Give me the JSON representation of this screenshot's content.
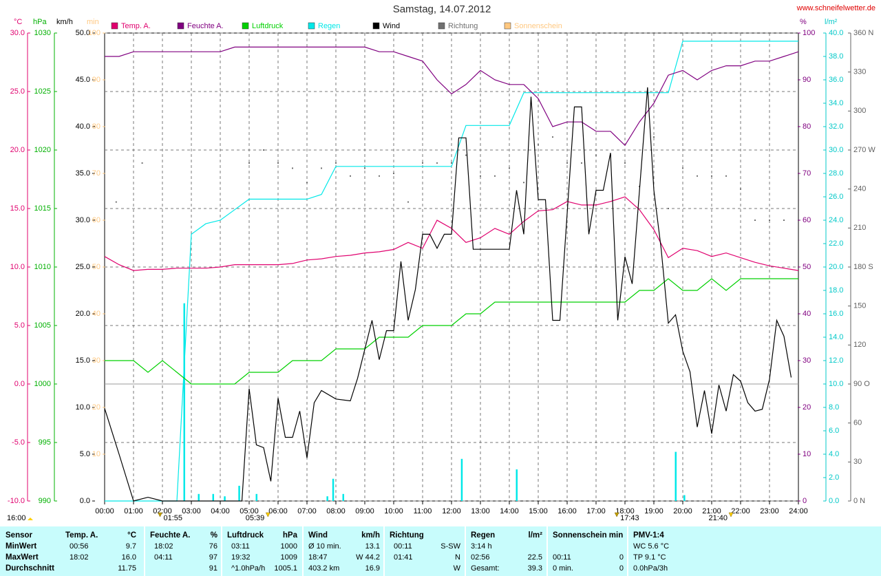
{
  "chart_data": {
    "type": "line",
    "title": "Samstag, 14.07.2012",
    "source": "www.schneifelwetter.de",
    "xlim": [
      0,
      24
    ],
    "xticks": [
      {
        "value": 0,
        "label": "00:00"
      },
      {
        "value": 1,
        "label": "01:00"
      },
      {
        "value": 2,
        "label": "02:00"
      },
      {
        "value": 3,
        "label": "03:00"
      },
      {
        "value": 4,
        "label": "04:00"
      },
      {
        "value": 5,
        "label": "05:00"
      },
      {
        "value": 6,
        "label": "06:00"
      },
      {
        "value": 7,
        "label": "07:00"
      },
      {
        "value": 8,
        "label": "08:00"
      },
      {
        "value": 9,
        "label": "09:00"
      },
      {
        "value": 10,
        "label": "10:00"
      },
      {
        "value": 11,
        "label": "11:00"
      },
      {
        "value": 12,
        "label": "12:00"
      },
      {
        "value": 13,
        "label": "13:00"
      },
      {
        "value": 14,
        "label": "14:00"
      },
      {
        "value": 15,
        "label": "15:00"
      },
      {
        "value": 16,
        "label": "16:00"
      },
      {
        "value": 17,
        "label": "17:00"
      },
      {
        "value": 18,
        "label": "18:00"
      },
      {
        "value": 19,
        "label": "19:00"
      },
      {
        "value": 20,
        "label": "20:00"
      },
      {
        "value": 21,
        "label": "21:00"
      },
      {
        "value": 22,
        "label": "22:00"
      },
      {
        "value": 23,
        "label": "23:00"
      },
      {
        "value": 24,
        "label": "24:00"
      }
    ],
    "grid": true,
    "grid_axis": 0,
    "axes": [
      {
        "unit": "°C",
        "color": "#e0006e",
        "lim": [
          -10,
          30
        ],
        "ticks": [
          {
            "value": -10,
            "label": "-10.0"
          },
          {
            "value": -5,
            "label": "-5.0"
          },
          {
            "value": 0,
            "label": "0.0"
          },
          {
            "value": 5,
            "label": "5.0"
          },
          {
            "value": 10,
            "label": "10.0"
          },
          {
            "value": 15,
            "label": "15.0"
          },
          {
            "value": 20,
            "label": "20.0"
          },
          {
            "value": 25,
            "label": "25.0"
          },
          {
            "value": 30,
            "label": "30.0"
          }
        ]
      },
      {
        "unit": "hPa",
        "color": "#00b000",
        "lim": [
          990,
          1030
        ],
        "ticks": [
          990,
          995,
          1000,
          1005,
          1010,
          1015,
          1020,
          1025,
          1030
        ]
      },
      {
        "unit": "km/h",
        "color": "#000000",
        "lim": [
          0,
          50
        ],
        "ticks": [
          {
            "value": 0,
            "label": "0.0"
          },
          {
            "value": 5,
            "label": "5.0"
          },
          {
            "value": 10,
            "label": "10.0"
          },
          {
            "value": 15,
            "label": "15.0"
          },
          {
            "value": 20,
            "label": "20.0"
          },
          {
            "value": 25,
            "label": "25.0"
          },
          {
            "value": 30,
            "label": "30.0"
          },
          {
            "value": 35,
            "label": "35.0"
          },
          {
            "value": 40,
            "label": "40.0"
          },
          {
            "value": 45,
            "label": "45.0"
          },
          {
            "value": 50,
            "label": "50.0"
          }
        ]
      },
      {
        "unit": "min",
        "color": "#ffc880",
        "lim": [
          0,
          100
        ],
        "ticks": [
          10,
          20,
          30,
          40,
          50,
          60,
          70,
          80,
          90,
          100
        ]
      },
      {
        "unit": "%",
        "color": "#800080",
        "lim": [
          0,
          100
        ],
        "ticks": [
          0,
          10,
          20,
          30,
          40,
          50,
          60,
          70,
          80,
          90,
          100
        ]
      },
      {
        "unit": "l/m²",
        "color": "#00c8c8",
        "lim": [
          0,
          40
        ],
        "ticks": [
          {
            "value": 0,
            "label": "0.0"
          },
          {
            "value": 2,
            "label": "2.0"
          },
          {
            "value": 4,
            "label": "4.0"
          },
          {
            "value": 6,
            "label": "6.0"
          },
          {
            "value": 8,
            "label": "8.0"
          },
          {
            "value": 10,
            "label": "10.0"
          },
          {
            "value": 12,
            "label": "12.0"
          },
          {
            "value": 14,
            "label": "14.0"
          },
          {
            "value": 16,
            "label": "16.0"
          },
          {
            "value": 18,
            "label": "18.0"
          },
          {
            "value": 20,
            "label": "20.0"
          },
          {
            "value": 22,
            "label": "22.0"
          },
          {
            "value": 24,
            "label": "24.0"
          },
          {
            "value": 26,
            "label": "26.0"
          },
          {
            "value": 28,
            "label": "28.0"
          },
          {
            "value": 30,
            "label": "30.0"
          },
          {
            "value": 32,
            "label": "32.0"
          },
          {
            "value": 34,
            "label": "34.0"
          },
          {
            "value": 36,
            "label": "36.0"
          },
          {
            "value": 38,
            "label": "38.0"
          },
          {
            "value": 40,
            "label": "40.0"
          }
        ]
      },
      {
        "color": "#606060",
        "lim": [
          0,
          360
        ],
        "ticks": [
          {
            "value": 0,
            "label": "0 N"
          },
          30,
          60,
          {
            "value": 90,
            "label": "90 O"
          },
          120,
          150,
          {
            "value": 180,
            "label": "180 S"
          },
          210,
          240,
          {
            "value": 270,
            "label": "270 W"
          },
          300,
          330,
          {
            "value": 360,
            "label": "360 N"
          }
        ]
      }
    ],
    "x": [
      0,
      0.5,
      1,
      1.5,
      2,
      2.5,
      3,
      3.5,
      4,
      4.5,
      5,
      5.5,
      6,
      6.5,
      7,
      7.5,
      8,
      8.5,
      9,
      9.5,
      10,
      10.5,
      11,
      11.5,
      12,
      12.5,
      13,
      13.5,
      14,
      14.5,
      15,
      15.5,
      16,
      16.5,
      17,
      17.5,
      18,
      18.5,
      19,
      19.5,
      20,
      20.5,
      21,
      21.5,
      22,
      22.5,
      23,
      23.5,
      24
    ],
    "series": [
      {
        "name": "Temp. A.",
        "color": "#e0006e",
        "axis": 0,
        "style": "line",
        "values": [
          10.9,
          10.2,
          9.7,
          9.8,
          9.8,
          9.9,
          9.9,
          9.9,
          10.0,
          10.2,
          10.2,
          10.2,
          10.2,
          10.3,
          10.6,
          10.7,
          10.9,
          11.0,
          11.2,
          11.3,
          11.5,
          12.1,
          11.6,
          14.0,
          13.3,
          12.1,
          12.5,
          13.3,
          12.8,
          13.9,
          14.8,
          14.9,
          15.6,
          15.3,
          15.3,
          15.6,
          16.0,
          14.9,
          13.2,
          10.8,
          11.6,
          11.4,
          10.9,
          11.2,
          10.8,
          10.4,
          10.1,
          9.9,
          9.7
        ]
      },
      {
        "name": "Feuchte A.",
        "color": "#800080",
        "axis": 4,
        "style": "line",
        "values": [
          95,
          95,
          96,
          96,
          96,
          96,
          96,
          96,
          96,
          97,
          97,
          97,
          97,
          97,
          97,
          97,
          97,
          97,
          97,
          96,
          96,
          95,
          94,
          90,
          87,
          89,
          92,
          90,
          89,
          89,
          86,
          80,
          81,
          81,
          79,
          79,
          76,
          81,
          85,
          91,
          92,
          90,
          92,
          93,
          93,
          94,
          94,
          95,
          96
        ]
      },
      {
        "name": "Luftdruck",
        "color": "#00d000",
        "axis": 1,
        "style": "line",
        "values": [
          1002,
          1002,
          1002,
          1001,
          1002,
          1001,
          1000,
          1000,
          1000,
          1000,
          1001,
          1001,
          1001,
          1002,
          1002,
          1002,
          1003,
          1003,
          1003,
          1004,
          1004,
          1004,
          1005,
          1005,
          1005,
          1006,
          1006,
          1007,
          1007,
          1007,
          1007,
          1007,
          1007,
          1007,
          1007,
          1007,
          1007,
          1008,
          1008,
          1009,
          1008,
          1008,
          1009,
          1008,
          1009,
          1009,
          1009,
          1009,
          1009
        ]
      },
      {
        "name": "Regen",
        "color": "#00e8e8",
        "axis": 5,
        "style": "line",
        "values": [
          0,
          0,
          0,
          0,
          0,
          0,
          22.8,
          23.7,
          24.0,
          24.9,
          25.8,
          25.8,
          25.8,
          25.8,
          25.8,
          26.2,
          28.6,
          28.6,
          28.6,
          28.6,
          28.6,
          28.6,
          28.6,
          28.6,
          28.6,
          32.1,
          32.1,
          32.1,
          32.1,
          34.9,
          34.9,
          34.9,
          34.9,
          34.9,
          34.9,
          34.9,
          34.9,
          34.9,
          34.9,
          34.9,
          39.3,
          39.3,
          39.3,
          39.3,
          39.3,
          39.3,
          39.3,
          39.3,
          39.3
        ],
        "bar_x": [
          2.75,
          3.25,
          3.75,
          4.15,
          4.65,
          5.25,
          7.7,
          7.9,
          8.25,
          12.35,
          14.25,
          19.75,
          20.05
        ],
        "bar_values": [
          16.9,
          0.6,
          0.6,
          0.4,
          1.3,
          0.6,
          0.4,
          1.9,
          0.6,
          3.6,
          2.7,
          4.2,
          0.5
        ]
      },
      {
        "name": "Wind",
        "color": "#000000",
        "axis": 2,
        "style": "line",
        "x": [
          0,
          0.5,
          1,
          1.5,
          2,
          2.5,
          3,
          3.5,
          4,
          4.5,
          4.75,
          5,
          5.25,
          5.5,
          5.75,
          6,
          6.25,
          6.5,
          6.75,
          7,
          7.25,
          7.5,
          8,
          8.5,
          8.75,
          9.25,
          9.5,
          9.75,
          10,
          10.25,
          10.5,
          10.75,
          11,
          11.25,
          11.5,
          11.75,
          12,
          12.25,
          12.5,
          12.75,
          13.5,
          14,
          14.25,
          14.5,
          14.75,
          15,
          15.25,
          15.5,
          15.75,
          16.25,
          16.5,
          16.75,
          17,
          17.25,
          17.5,
          17.75,
          18,
          18.25,
          18.78,
          19,
          19.25,
          19.5,
          19.75,
          20,
          20.25,
          20.5,
          20.75,
          21,
          21.25,
          21.5,
          21.75,
          22,
          22.25,
          22.5,
          22.75,
          23,
          23.25,
          23.5,
          23.75
        ],
        "values": [
          9.9,
          5.0,
          0,
          0.4,
          0,
          0,
          0,
          0,
          0,
          0,
          0,
          12.0,
          6.0,
          5.7,
          2.1,
          11.0,
          6.8,
          6.8,
          9.6,
          4.6,
          10.5,
          11.8,
          10.9,
          10.7,
          13.1,
          19.3,
          15.1,
          18.2,
          18.2,
          25.6,
          19.3,
          22.6,
          28.5,
          28.5,
          27.0,
          28.5,
          28.5,
          38.8,
          38.8,
          26.9,
          26.9,
          26.9,
          33.2,
          28.5,
          43.2,
          32.2,
          32.2,
          19.3,
          19.3,
          42.1,
          42.1,
          28.5,
          33.2,
          33.2,
          37.2,
          19.3,
          26.1,
          23.2,
          44.2,
          33.2,
          27.0,
          19.0,
          19.9,
          16.0,
          13.8,
          7.9,
          11.8,
          7.2,
          12.4,
          9.6,
          13.5,
          12.8,
          10.5,
          9.6,
          9.8,
          13.0,
          19.3,
          17.6,
          13.2
        ]
      },
      {
        "name": "Richtung",
        "color": "#707070",
        "axis": 6,
        "style": "dots",
        "x": [
          0.4,
          1.3,
          5,
          5.5,
          6,
          6.5,
          7,
          7.5,
          8,
          8.5,
          9,
          9.5,
          10,
          10.5,
          11,
          11.5,
          12,
          12.5,
          13,
          13.5,
          14,
          14.5,
          15,
          15.5,
          16,
          16.5,
          17,
          17.5,
          18,
          18.5,
          19,
          19.5,
          20,
          20.5,
          21,
          21.5,
          22,
          22.5,
          23,
          23.5
        ],
        "values": [
          230,
          260,
          260,
          270,
          260,
          256,
          245,
          256,
          260,
          250,
          256,
          250,
          252,
          230,
          260,
          260,
          260,
          266,
          250,
          250,
          256,
          245,
          274,
          280,
          260,
          260,
          266,
          266,
          260,
          242,
          280,
          225,
          256,
          250,
          250,
          250,
          240,
          216,
          216,
          216
        ]
      },
      {
        "name": "Sonnenschein",
        "color": "#ffc880",
        "axis": 3,
        "style": "bars",
        "x": [],
        "values": []
      }
    ],
    "left_note": "16:00",
    "markers": [
      {
        "value": 1.917,
        "label": "01:55"
      },
      {
        "value": 5.65,
        "label": "05:39"
      },
      {
        "value": 17.717,
        "label": "17:43"
      },
      {
        "value": 21.667,
        "label": "21:40"
      }
    ]
  },
  "table": {
    "corner": "Sensor",
    "columns": [
      {
        "title": "Temp. A.",
        "unit": "°C"
      },
      {
        "title": "Feuchte A.",
        "unit": "%"
      },
      {
        "title": "Luftdruck",
        "unit": "hPa"
      },
      {
        "title": "Wind",
        "unit": "km/h"
      },
      {
        "title": "Richtung"
      },
      {
        "title": "Regen",
        "unit": "l/m²"
      },
      {
        "title": "Sonnenschein min"
      },
      {
        "title": "PMV-1:4"
      }
    ],
    "rows": [
      {
        "label": "MinWert",
        "cells": [
          [
            "00:56",
            "9.7"
          ],
          [
            "18:02",
            "76"
          ],
          [
            "03:11",
            "1000"
          ],
          [
            "Ø 10 min.",
            "13.1"
          ],
          [
            "00:11",
            "S-SW"
          ],
          [
            "3:14 h",
            null
          ],
          [
            null,
            null
          ],
          [
            "WC 5.6 °C",
            null
          ]
        ]
      },
      {
        "label": "MaxWert",
        "cells": [
          [
            "18:02",
            "16.0"
          ],
          [
            "04:11",
            "97"
          ],
          [
            "19:32",
            "1009"
          ],
          [
            "18:47",
            "W 44.2"
          ],
          [
            "01:41",
            "N"
          ],
          [
            "02:56",
            "22.5"
          ],
          [
            "00:11",
            "0"
          ],
          [
            "TP 9.1 °C",
            null
          ]
        ]
      },
      {
        "label": "Durchschnitt",
        "cells": [
          [
            null,
            "11.75"
          ],
          [
            null,
            "91"
          ],
          [
            "^1.0hPa/h",
            "1005.1"
          ],
          [
            "403.2 km",
            "16.9"
          ],
          [
            null,
            "W"
          ],
          [
            "Gesamt:",
            "39.3"
          ],
          [
            "0 min.",
            "0"
          ],
          [
            "0.0hPa/3h",
            null
          ]
        ]
      }
    ]
  }
}
